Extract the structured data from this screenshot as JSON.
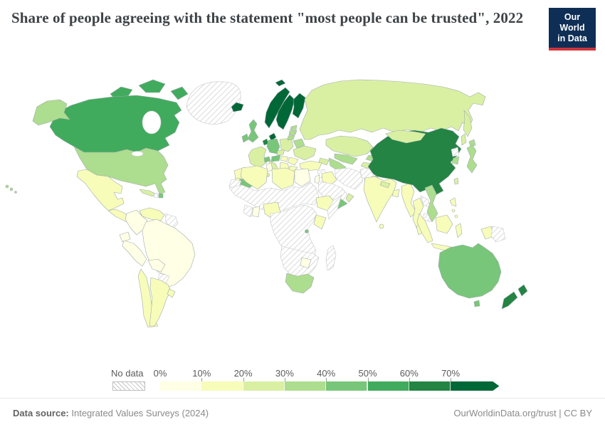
{
  "header": {
    "title": "Share of people agreeing with the statement \"most people can be trusted\", 2022"
  },
  "logo": {
    "line1": "Our World",
    "line2": "in Data"
  },
  "legend": {
    "no_data_label": "No data",
    "bins": [
      {
        "label": "0%",
        "range": "0-10%"
      },
      {
        "label": "10%",
        "range": "10-20%"
      },
      {
        "label": "20%",
        "range": "20-30%"
      },
      {
        "label": "30%",
        "range": "30-40%"
      },
      {
        "label": "40%",
        "range": "40-50%"
      },
      {
        "label": "50%",
        "range": "50-60%"
      },
      {
        "label": "60%",
        "range": "60-70%"
      },
      {
        "label": "70%",
        "range": "70%+"
      }
    ]
  },
  "palette": {
    "0-10%": "#ffffe5",
    "10-20%": "#f7fcb9",
    "20-30%": "#d9f0a3",
    "30-40%": "#addd8e",
    "40-50%": "#78c679",
    "50-60%": "#41ab5d",
    "60-70%": "#238443",
    "70%+": "#006837",
    "border": "#a3abaf",
    "no_data_stroke": "#c6c6c6",
    "no_data_hatch": "#d2d2d2"
  },
  "footer": {
    "source_label": "Data source:",
    "source_value": " Integrated Values Surveys (2024)",
    "link": "OurWorldinData.org/trust | CC BY"
  },
  "chart_data": {
    "type": "choropleth-map",
    "title": "Share of people agreeing with the statement \"most people can be trusted\"",
    "year": "2022",
    "unit": "%",
    "legend_position": "bottom",
    "bins": [
      "0-10%",
      "10-20%",
      "20-30%",
      "30-40%",
      "40-50%",
      "50-60%",
      "60-70%",
      "70%+",
      "no-data"
    ],
    "countries": {
      "canada": "50-60%",
      "united-states": "30-40%",
      "mexico": "10-20%",
      "central-america": "10-20%",
      "cuba": "20-30%",
      "haiti": "no-data",
      "dominican-republic": "40-50%",
      "venezuela": "10-20%",
      "colombia": "0-10%",
      "guyana-suriname": "no-data",
      "ecuador": "0-10%",
      "peru": "0-10%",
      "brazil": "0-10%",
      "bolivia": "0-10%",
      "paraguay": "no-data",
      "chile": "10-20%",
      "argentina": "10-20%",
      "uruguay": "10-20%",
      "greenland": "no-data",
      "iceland": "70%+",
      "norway": "70%+",
      "sweden": "70%+",
      "finland": "70%+",
      "denmark": "70%+",
      "united-kingdom": "40-50%",
      "ireland": "40-50%",
      "netherlands": "60-70%",
      "germany": "40-50%",
      "france": "20-30%",
      "switzerland": "40-50%",
      "austria": "40-50%",
      "czechia": "20-30%",
      "poland": "20-30%",
      "estonia": "30-40%",
      "latvia": "30-40%",
      "lithuania": "30-40%",
      "belarus": "30-40%",
      "ukraine": "20-30%",
      "romania": "10-20%",
      "hungary": "10-20%",
      "balkans": "10-20%",
      "bulgaria": "10-20%",
      "greece": "10-20%",
      "italy": "20-30%",
      "spain": "40-50%",
      "portugal": "10-20%",
      "russia": "20-30%",
      "kazakhstan": "20-30%",
      "uzbekistan": "30-40%",
      "turkmenistan": "30-40%",
      "kyrgyzstan": "30-40%",
      "tajikistan": "20-30%",
      "caucasus": "20-30%",
      "turkey": "10-20%",
      "syria": "no-data",
      "levant": "0-10%",
      "iraq": "10-20%",
      "iran": "no-data",
      "afghanistan": "no-data",
      "pakistan": "30-40%",
      "saudi-arabia": "no-data",
      "yemen": "40-50%",
      "oman": "20-30%",
      "morocco": "10-20%",
      "western-sahara": "no-data",
      "algeria": "10-20%",
      "tunisia": "0-10%",
      "libya": "10-20%",
      "egypt": "0-10%",
      "sahel-sudan": "no-data",
      "cote-divoire": "no-data",
      "ghana": "0-10%",
      "nigeria": "10-20%",
      "central-africa": "no-data",
      "ethiopia": "10-20%",
      "somalia": "no-data",
      "kenya": "10-20%",
      "rwanda": "40-50%",
      "southern-africa": "no-data",
      "zimbabwe": "0-10%",
      "south-africa": "30-40%",
      "madagascar": "no-data",
      "india": "10-20%",
      "nepal": "20-30%",
      "bangladesh": "10-20%",
      "sri-lanka": "10-20%",
      "myanmar": "10-20%",
      "thailand": "10-20%",
      "laos": "no-data",
      "cambodia": "no-data",
      "vietnam": "30-40%",
      "china": "60-70%",
      "mongolia": "20-30%",
      "north-korea": "no-data",
      "south-korea": "30-40%",
      "japan": "30-40%",
      "taiwan": "20-30%",
      "philippines": "10-20%",
      "malaysia": "10-20%",
      "indonesia": "10-20%",
      "papua-new-guinea": "no-data",
      "australia": "40-50%",
      "new-zealand": "60-70%"
    }
  }
}
